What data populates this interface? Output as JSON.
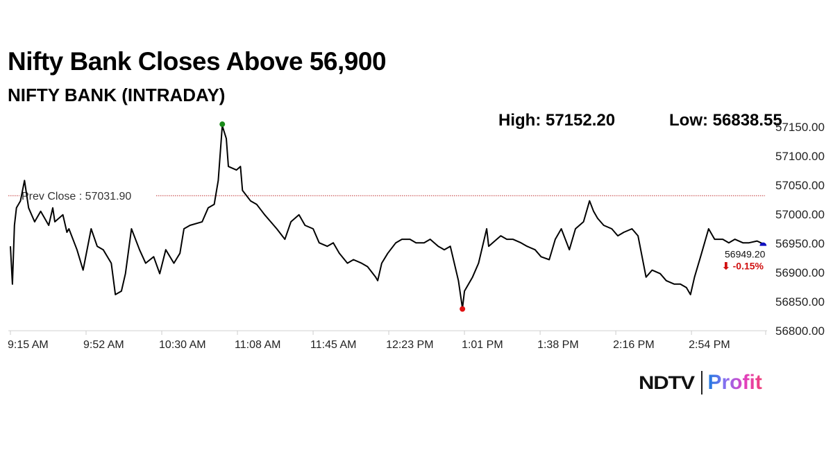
{
  "title": "Nifty Bank Closes Above 56,900",
  "subtitle": "NIFTY BANK (INTRADAY)",
  "high_label": "High: 57152.20",
  "low_label": "Low: 56838.55",
  "logo": {
    "ndtv": "NDTV",
    "profit": "Profit"
  },
  "chart_data": {
    "type": "line",
    "title": "NIFTY BANK (INTRADAY)",
    "xlabel": "",
    "ylabel": "",
    "xlim_minutes_from_open": [
      0,
      375
    ],
    "ylim": [
      56800,
      57150
    ],
    "x_ticks": [
      {
        "min": 0,
        "label": "9:15 AM"
      },
      {
        "min": 37.5,
        "label": "9:52 AM"
      },
      {
        "min": 75,
        "label": "10:30 AM"
      },
      {
        "min": 112.5,
        "label": "11:08 AM"
      },
      {
        "min": 150,
        "label": "11:45 AM"
      },
      {
        "min": 187.5,
        "label": "12:23 PM"
      },
      {
        "min": 225,
        "label": "1:01 PM"
      },
      {
        "min": 262.5,
        "label": "1:38 PM"
      },
      {
        "min": 300,
        "label": "2:16 PM"
      },
      {
        "min": 337.5,
        "label": "2:54 PM"
      }
    ],
    "y_ticks": [
      "56800.00",
      "56850.00",
      "56900.00",
      "56950.00",
      "57000.00",
      "57050.00",
      "57100.00",
      "57150.00"
    ],
    "prev_close": 57031.9,
    "prev_close_label": "Prev Close : 57031.90",
    "high": {
      "min": 105,
      "value": 57152.2,
      "color": "#1a8a1a"
    },
    "low": {
      "min": 224,
      "value": 56838.55,
      "color": "#e01010"
    },
    "last": {
      "min": 373,
      "value": 56949.2,
      "label": "56949.20",
      "change_label": "⬇ -0.15%",
      "color": "#1010c0",
      "change_color": "#d01010"
    },
    "series": [
      {
        "name": "NIFTY BANK",
        "color": "#000000",
        "points": [
          [
            0,
            56945
          ],
          [
            1,
            56880
          ],
          [
            2,
            56981
          ],
          [
            3,
            57011
          ],
          [
            5,
            57023
          ],
          [
            7,
            57058
          ],
          [
            9,
            57011
          ],
          [
            12,
            56987
          ],
          [
            15,
            57005
          ],
          [
            19,
            56981
          ],
          [
            21,
            57011
          ],
          [
            22,
            56987
          ],
          [
            26,
            56999
          ],
          [
            28,
            56969
          ],
          [
            29,
            56975
          ],
          [
            33,
            56939
          ],
          [
            36,
            56904
          ],
          [
            40,
            56975
          ],
          [
            43,
            56945
          ],
          [
            46,
            56939
          ],
          [
            50,
            56916
          ],
          [
            52,
            56862
          ],
          [
            55,
            56868
          ],
          [
            57,
            56898
          ],
          [
            60,
            56975
          ],
          [
            64,
            56939
          ],
          [
            67,
            56916
          ],
          [
            71,
            56927
          ],
          [
            74,
            56898
          ],
          [
            77,
            56939
          ],
          [
            81,
            56916
          ],
          [
            84,
            56933
          ],
          [
            86,
            56975
          ],
          [
            89,
            56981
          ],
          [
            95,
            56987
          ],
          [
            98,
            57011
          ],
          [
            101,
            57017
          ],
          [
            103,
            57058
          ],
          [
            105,
            57152
          ],
          [
            107,
            57130
          ],
          [
            108,
            57082
          ],
          [
            112,
            57076
          ],
          [
            114,
            57082
          ],
          [
            115,
            57041
          ],
          [
            119,
            57023
          ],
          [
            122,
            57017
          ],
          [
            126,
            56999
          ],
          [
            129,
            56987
          ],
          [
            132,
            56975
          ],
          [
            136,
            56957
          ],
          [
            139,
            56987
          ],
          [
            143,
            56999
          ],
          [
            146,
            56981
          ],
          [
            150,
            56975
          ],
          [
            153,
            56951
          ],
          [
            157,
            56945
          ],
          [
            160,
            56951
          ],
          [
            163,
            56933
          ],
          [
            167,
            56916
          ],
          [
            170,
            56922
          ],
          [
            174,
            56916
          ],
          [
            177,
            56910
          ],
          [
            181,
            56892
          ],
          [
            182,
            56886
          ],
          [
            184,
            56916
          ],
          [
            187,
            56933
          ],
          [
            191,
            56951
          ],
          [
            194,
            56957
          ],
          [
            198,
            56957
          ],
          [
            201,
            56951
          ],
          [
            205,
            56951
          ],
          [
            208,
            56957
          ],
          [
            212,
            56945
          ],
          [
            215,
            56939
          ],
          [
            218,
            56945
          ],
          [
            222,
            56886
          ],
          [
            224,
            56838.55
          ],
          [
            225,
            56868
          ],
          [
            229,
            56892
          ],
          [
            232,
            56916
          ],
          [
            236,
            56975
          ],
          [
            237,
            56945
          ],
          [
            241,
            56957
          ],
          [
            243,
            56963
          ],
          [
            246,
            56957
          ],
          [
            249,
            56957
          ],
          [
            253,
            56951
          ],
          [
            256,
            56945
          ],
          [
            260,
            56939
          ],
          [
            263,
            56927
          ],
          [
            267,
            56922
          ],
          [
            270,
            56957
          ],
          [
            273,
            56975
          ],
          [
            277,
            56939
          ],
          [
            280,
            56975
          ],
          [
            284,
            56987
          ],
          [
            287,
            57023
          ],
          [
            289,
            57005
          ],
          [
            291,
            56993
          ],
          [
            294,
            56981
          ],
          [
            298,
            56975
          ],
          [
            301,
            56963
          ],
          [
            304,
            56969
          ],
          [
            308,
            56975
          ],
          [
            311,
            56963
          ],
          [
            315,
            56892
          ],
          [
            318,
            56904
          ],
          [
            322,
            56898
          ],
          [
            325,
            56886
          ],
          [
            329,
            56880
          ],
          [
            332,
            56880
          ],
          [
            335,
            56874
          ],
          [
            337,
            56862
          ],
          [
            339,
            56892
          ],
          [
            342,
            56927
          ],
          [
            346,
            56975
          ],
          [
            349,
            56957
          ],
          [
            353,
            56957
          ],
          [
            356,
            56951
          ],
          [
            359,
            56957
          ],
          [
            363,
            56951
          ],
          [
            366,
            56951
          ],
          [
            370,
            56954
          ],
          [
            373,
            56949.2
          ]
        ]
      }
    ]
  }
}
